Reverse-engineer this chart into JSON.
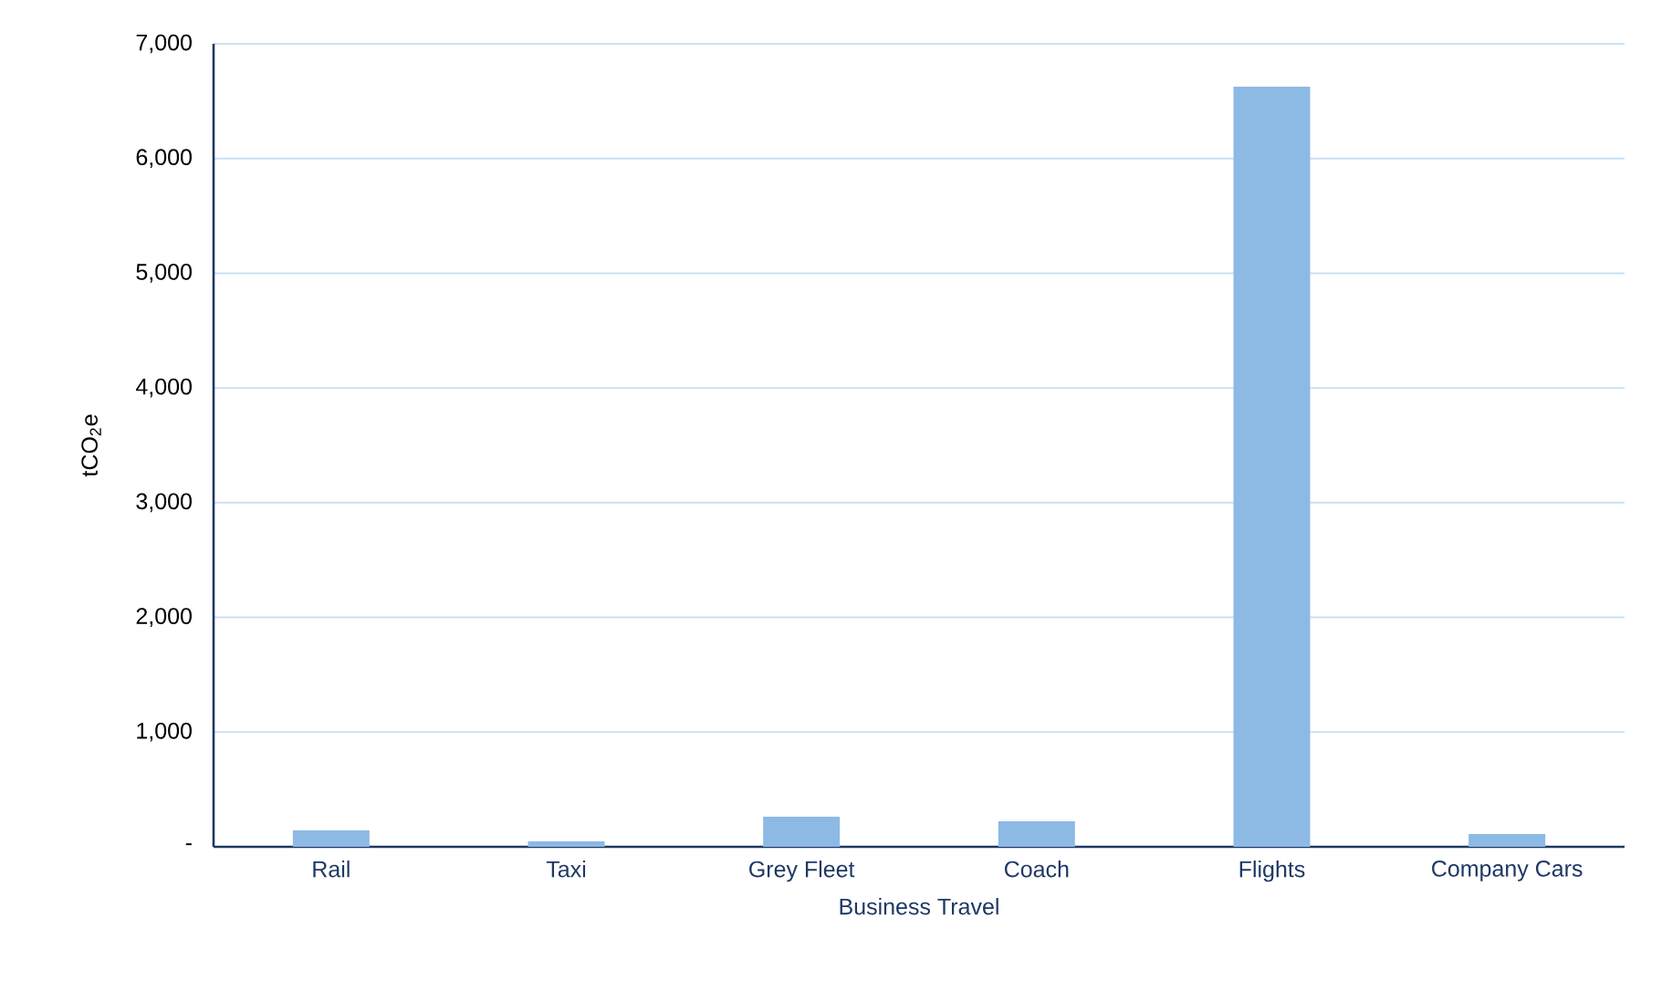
{
  "chart_data": {
    "type": "bar",
    "categories": [
      "Rail",
      "Taxi",
      "Grey Fleet",
      "Coach",
      "Flights",
      "Company Cars"
    ],
    "values": [
      143,
      48,
      262,
      223,
      6626,
      111
    ],
    "color": "#8db9e5",
    "xlabel": "Business Travel",
    "ylabel": "tCO$_{2}$e",
    "ylim": [
      0,
      7000
    ],
    "yticks": [
      {
        "value": 0,
        "label": "-"
      },
      {
        "value": 1000,
        "label": "1,000"
      },
      {
        "value": 2000,
        "label": "2,000"
      },
      {
        "value": 3000,
        "label": "3,000"
      },
      {
        "value": 4000,
        "label": "4,000"
      },
      {
        "value": 5000,
        "label": "5,000"
      },
      {
        "value": 6000,
        "label": "6,000"
      },
      {
        "value": 7000,
        "label": "7,000"
      }
    ],
    "grid": "y"
  }
}
